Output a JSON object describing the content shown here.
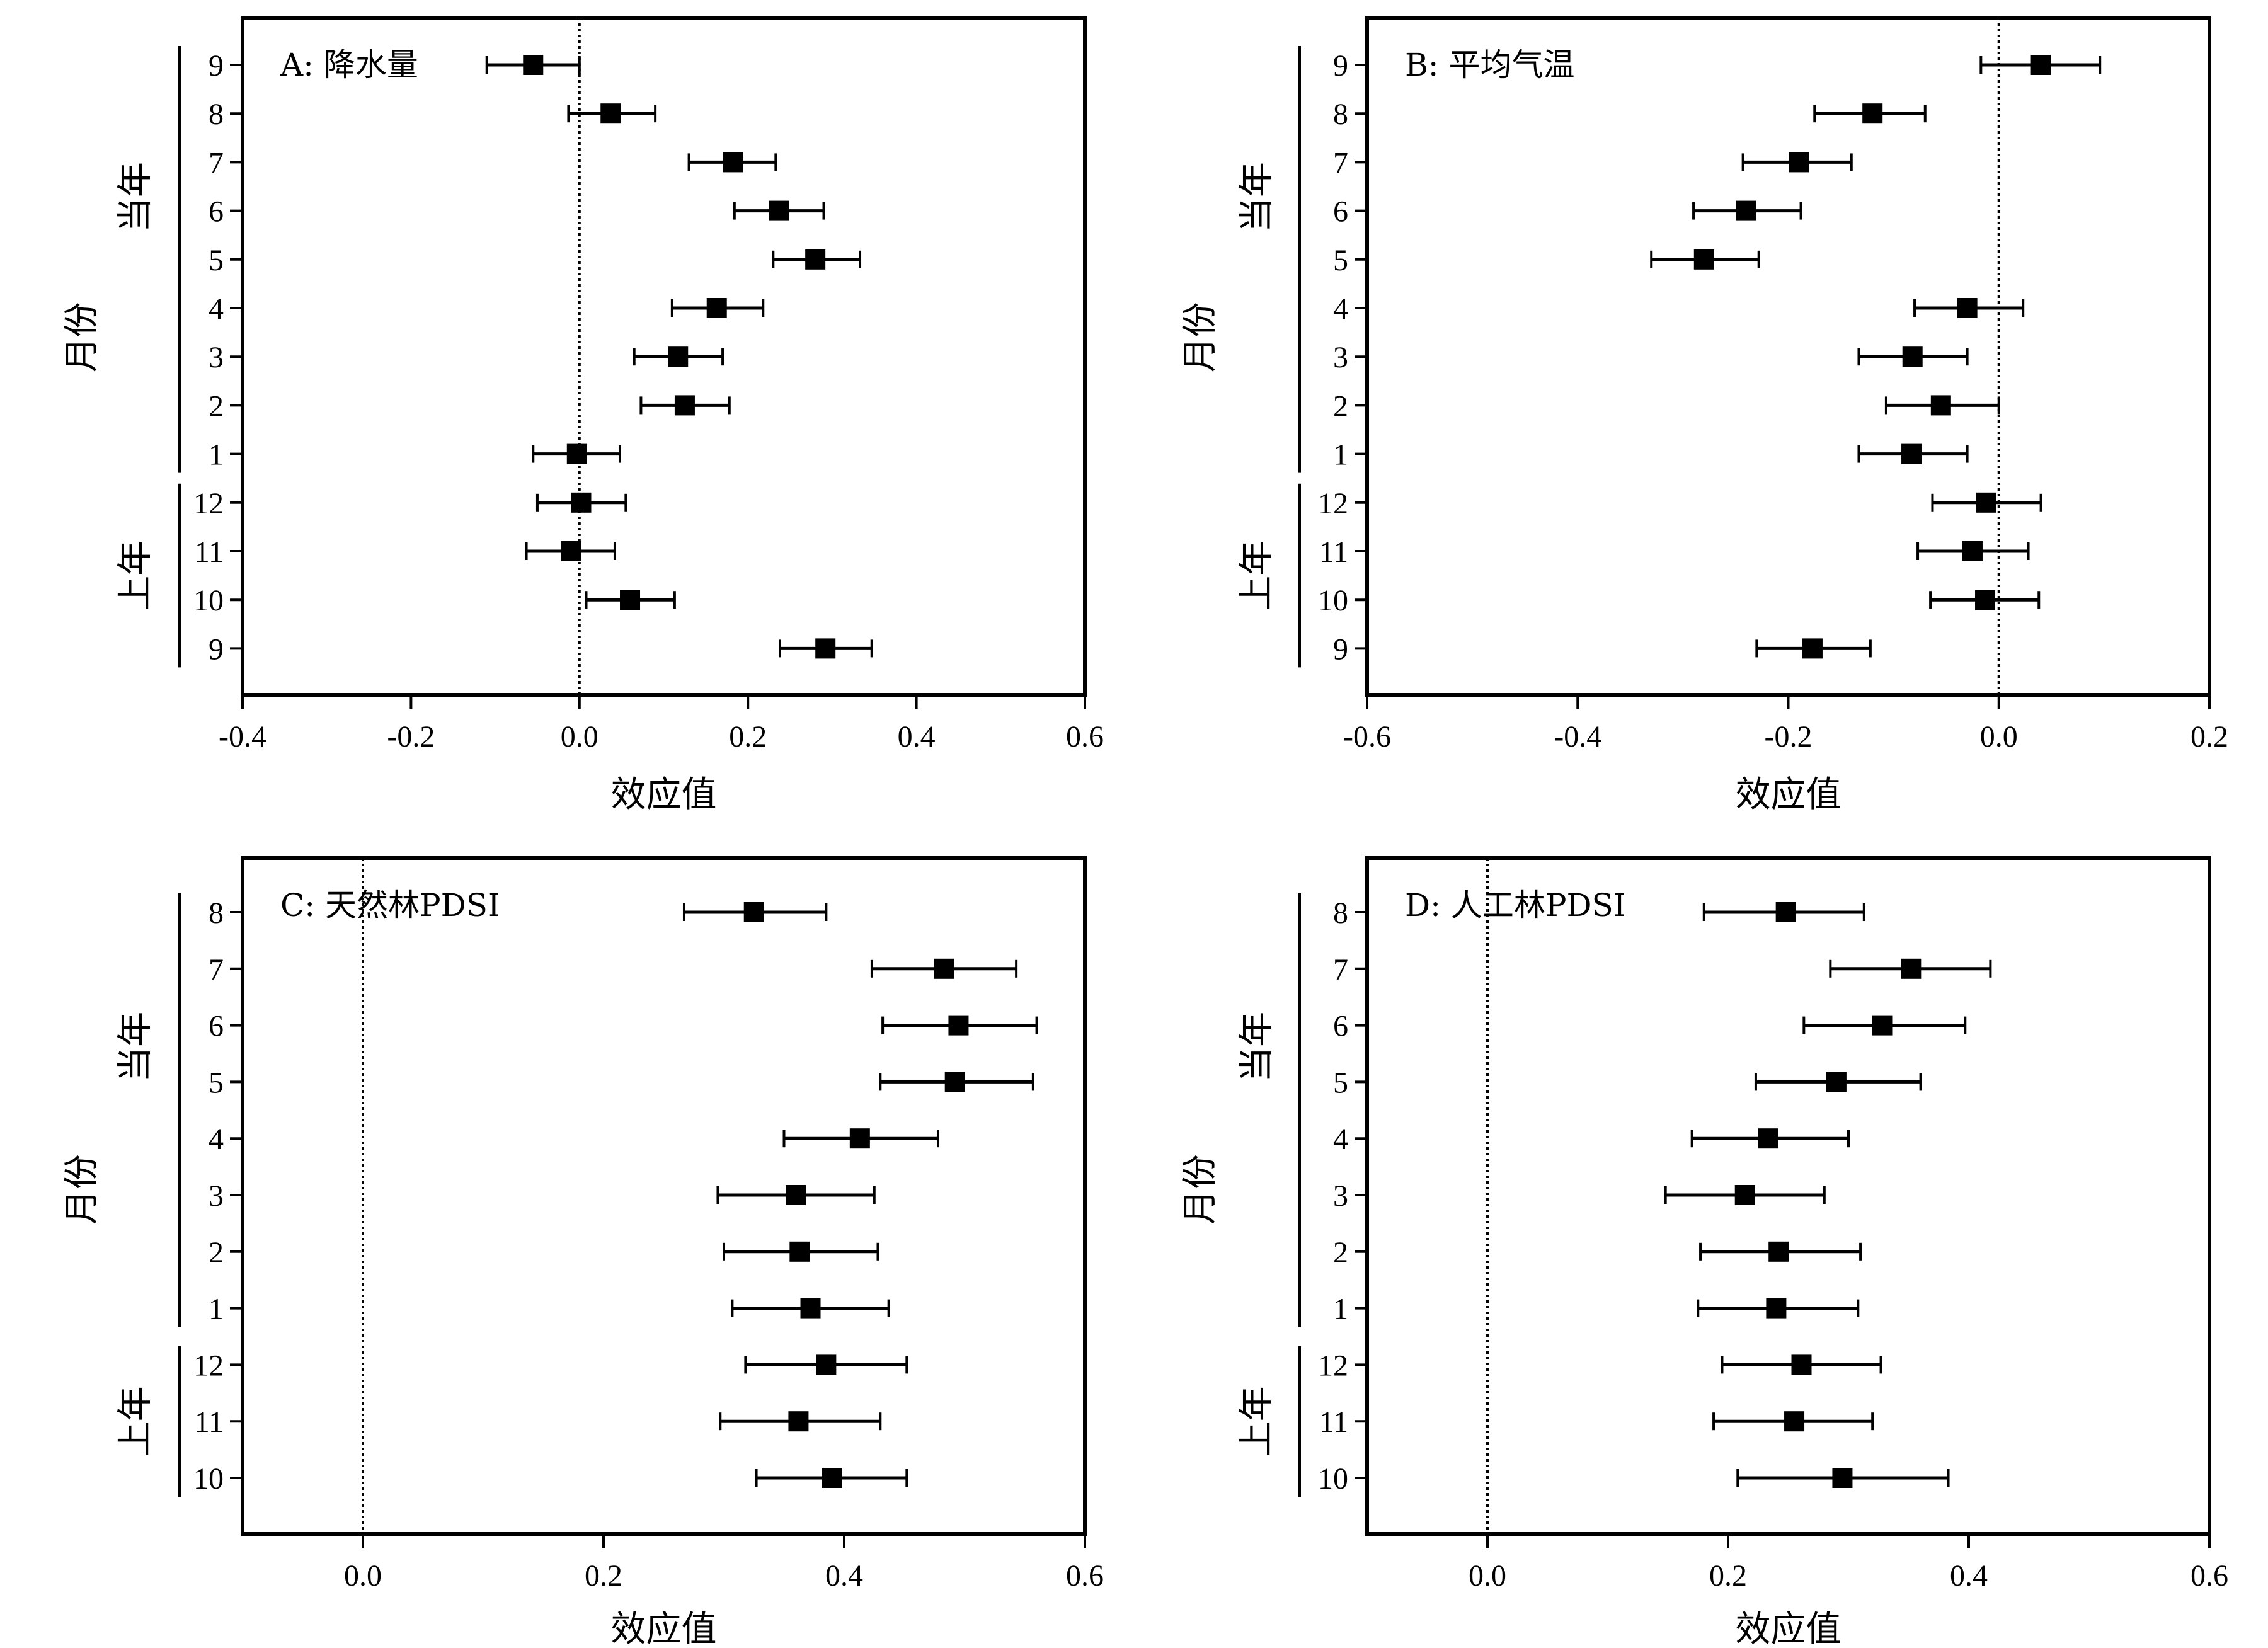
{
  "figure": {
    "x_axis_label": "效应值",
    "y_axis_label": "月份",
    "group_current": "当年",
    "group_previous": "上年"
  },
  "chart_data": [
    {
      "type": "scatter",
      "subtype": "forest-plot-errorbars",
      "panel": "A",
      "title": "A: 降水量",
      "xlabel": "效应值",
      "ylabel": "月份",
      "xlim": [
        -0.4,
        0.6
      ],
      "xticks": [
        -0.4,
        -0.2,
        0.0,
        0.2,
        0.4,
        0.6
      ],
      "reference_line": 0.0,
      "groups": [
        {
          "label": "当年",
          "months": [
            "9",
            "8",
            "7",
            "6",
            "5",
            "4",
            "3",
            "2",
            "1"
          ]
        },
        {
          "label": "上年",
          "months": [
            "12",
            "11",
            "10",
            "9"
          ]
        }
      ],
      "points": [
        {
          "month": "9",
          "group": "当年",
          "estimate": -0.055,
          "lower": -0.11,
          "upper": 0.0
        },
        {
          "month": "8",
          "group": "当年",
          "estimate": 0.037,
          "lower": -0.013,
          "upper": 0.09
        },
        {
          "month": "7",
          "group": "当年",
          "estimate": 0.182,
          "lower": 0.13,
          "upper": 0.233
        },
        {
          "month": "6",
          "group": "当年",
          "estimate": 0.237,
          "lower": 0.184,
          "upper": 0.29
        },
        {
          "month": "5",
          "group": "当年",
          "estimate": 0.28,
          "lower": 0.23,
          "upper": 0.333
        },
        {
          "month": "4",
          "group": "当年",
          "estimate": 0.163,
          "lower": 0.11,
          "upper": 0.218
        },
        {
          "month": "3",
          "group": "当年",
          "estimate": 0.117,
          "lower": 0.065,
          "upper": 0.17
        },
        {
          "month": "2",
          "group": "当年",
          "estimate": 0.125,
          "lower": 0.073,
          "upper": 0.178
        },
        {
          "month": "1",
          "group": "当年",
          "estimate": -0.003,
          "lower": -0.055,
          "upper": 0.048
        },
        {
          "month": "12",
          "group": "上年",
          "estimate": 0.002,
          "lower": -0.05,
          "upper": 0.055
        },
        {
          "month": "11",
          "group": "上年",
          "estimate": -0.01,
          "lower": -0.063,
          "upper": 0.042
        },
        {
          "month": "10",
          "group": "上年",
          "estimate": 0.06,
          "lower": 0.008,
          "upper": 0.113
        },
        {
          "month": "9",
          "group": "上年",
          "estimate": 0.292,
          "lower": 0.238,
          "upper": 0.347
        }
      ]
    },
    {
      "type": "scatter",
      "subtype": "forest-plot-errorbars",
      "panel": "B",
      "title": "B: 平均气温",
      "xlabel": "效应值",
      "ylabel": "月份",
      "xlim": [
        -0.6,
        0.2
      ],
      "xticks": [
        -0.6,
        -0.4,
        -0.2,
        0.0,
        0.2
      ],
      "reference_line": 0.0,
      "groups": [
        {
          "label": "当年",
          "months": [
            "9",
            "8",
            "7",
            "6",
            "5",
            "4",
            "3",
            "2",
            "1"
          ]
        },
        {
          "label": "上年",
          "months": [
            "12",
            "11",
            "10",
            "9"
          ]
        }
      ],
      "points": [
        {
          "month": "9",
          "group": "当年",
          "estimate": 0.04,
          "lower": -0.017,
          "upper": 0.096
        },
        {
          "month": "8",
          "group": "当年",
          "estimate": -0.12,
          "lower": -0.175,
          "upper": -0.07
        },
        {
          "month": "7",
          "group": "当年",
          "estimate": -0.19,
          "lower": -0.243,
          "upper": -0.14
        },
        {
          "month": "6",
          "group": "当年",
          "estimate": -0.24,
          "lower": -0.29,
          "upper": -0.188
        },
        {
          "month": "5",
          "group": "当年",
          "estimate": -0.28,
          "lower": -0.33,
          "upper": -0.228
        },
        {
          "month": "4",
          "group": "当年",
          "estimate": -0.03,
          "lower": -0.08,
          "upper": 0.023
        },
        {
          "month": "3",
          "group": "当年",
          "estimate": -0.082,
          "lower": -0.133,
          "upper": -0.03
        },
        {
          "month": "2",
          "group": "当年",
          "estimate": -0.055,
          "lower": -0.107,
          "upper": 0.0
        },
        {
          "month": "1",
          "group": "当年",
          "estimate": -0.083,
          "lower": -0.133,
          "upper": -0.03
        },
        {
          "month": "12",
          "group": "上年",
          "estimate": -0.012,
          "lower": -0.063,
          "upper": 0.04
        },
        {
          "month": "11",
          "group": "上年",
          "estimate": -0.025,
          "lower": -0.077,
          "upper": 0.028
        },
        {
          "month": "10",
          "group": "上年",
          "estimate": -0.013,
          "lower": -0.065,
          "upper": 0.038
        },
        {
          "month": "9",
          "group": "上年",
          "estimate": -0.177,
          "lower": -0.23,
          "upper": -0.122
        }
      ]
    },
    {
      "type": "scatter",
      "subtype": "forest-plot-errorbars",
      "panel": "C",
      "title": "C: 天然林PDSI",
      "xlabel": "效应值",
      "ylabel": "月份",
      "xlim": [
        -0.1,
        0.6
      ],
      "xticks": [
        0.0,
        0.2,
        0.4,
        0.6
      ],
      "reference_line": 0.0,
      "groups": [
        {
          "label": "当年",
          "months": [
            "8",
            "7",
            "6",
            "5",
            "4",
            "3",
            "2",
            "1"
          ]
        },
        {
          "label": "上年",
          "months": [
            "12",
            "11",
            "10"
          ]
        }
      ],
      "points": [
        {
          "month": "8",
          "group": "当年",
          "estimate": 0.325,
          "lower": 0.267,
          "upper": 0.385
        },
        {
          "month": "7",
          "group": "当年",
          "estimate": 0.483,
          "lower": 0.423,
          "upper": 0.543
        },
        {
          "month": "6",
          "group": "当年",
          "estimate": 0.495,
          "lower": 0.432,
          "upper": 0.56
        },
        {
          "month": "5",
          "group": "当年",
          "estimate": 0.492,
          "lower": 0.43,
          "upper": 0.557
        },
        {
          "month": "4",
          "group": "当年",
          "estimate": 0.413,
          "lower": 0.35,
          "upper": 0.478
        },
        {
          "month": "3",
          "group": "当年",
          "estimate": 0.36,
          "lower": 0.295,
          "upper": 0.425
        },
        {
          "month": "2",
          "group": "当年",
          "estimate": 0.363,
          "lower": 0.3,
          "upper": 0.428
        },
        {
          "month": "1",
          "group": "当年",
          "estimate": 0.372,
          "lower": 0.307,
          "upper": 0.437
        },
        {
          "month": "12",
          "group": "上年",
          "estimate": 0.385,
          "lower": 0.318,
          "upper": 0.452
        },
        {
          "month": "11",
          "group": "上年",
          "estimate": 0.362,
          "lower": 0.297,
          "upper": 0.43
        },
        {
          "month": "10",
          "group": "上年",
          "estimate": 0.39,
          "lower": 0.327,
          "upper": 0.452
        }
      ]
    },
    {
      "type": "scatter",
      "subtype": "forest-plot-errorbars",
      "panel": "D",
      "title": "D: 人工林PDSI",
      "xlabel": "效应值",
      "ylabel": "月份",
      "xlim": [
        -0.1,
        0.6
      ],
      "xticks": [
        0.0,
        0.2,
        0.4,
        0.6
      ],
      "reference_line": 0.0,
      "groups": [
        {
          "label": "当年",
          "months": [
            "8",
            "7",
            "6",
            "5",
            "4",
            "3",
            "2",
            "1"
          ]
        },
        {
          "label": "上年",
          "months": [
            "12",
            "11",
            "10"
          ]
        }
      ],
      "points": [
        {
          "month": "8",
          "group": "当年",
          "estimate": 0.248,
          "lower": 0.18,
          "upper": 0.313
        },
        {
          "month": "7",
          "group": "当年",
          "estimate": 0.352,
          "lower": 0.285,
          "upper": 0.418
        },
        {
          "month": "6",
          "group": "当年",
          "estimate": 0.328,
          "lower": 0.263,
          "upper": 0.397
        },
        {
          "month": "5",
          "group": "当年",
          "estimate": 0.29,
          "lower": 0.223,
          "upper": 0.36
        },
        {
          "month": "4",
          "group": "当年",
          "estimate": 0.233,
          "lower": 0.17,
          "upper": 0.3
        },
        {
          "month": "3",
          "group": "当年",
          "estimate": 0.214,
          "lower": 0.148,
          "upper": 0.28
        },
        {
          "month": "2",
          "group": "当年",
          "estimate": 0.242,
          "lower": 0.177,
          "upper": 0.31
        },
        {
          "month": "1",
          "group": "当年",
          "estimate": 0.24,
          "lower": 0.175,
          "upper": 0.308
        },
        {
          "month": "12",
          "group": "上年",
          "estimate": 0.261,
          "lower": 0.195,
          "upper": 0.327
        },
        {
          "month": "11",
          "group": "上年",
          "estimate": 0.255,
          "lower": 0.188,
          "upper": 0.32
        },
        {
          "month": "10",
          "group": "上年",
          "estimate": 0.295,
          "lower": 0.208,
          "upper": 0.383
        }
      ]
    }
  ]
}
